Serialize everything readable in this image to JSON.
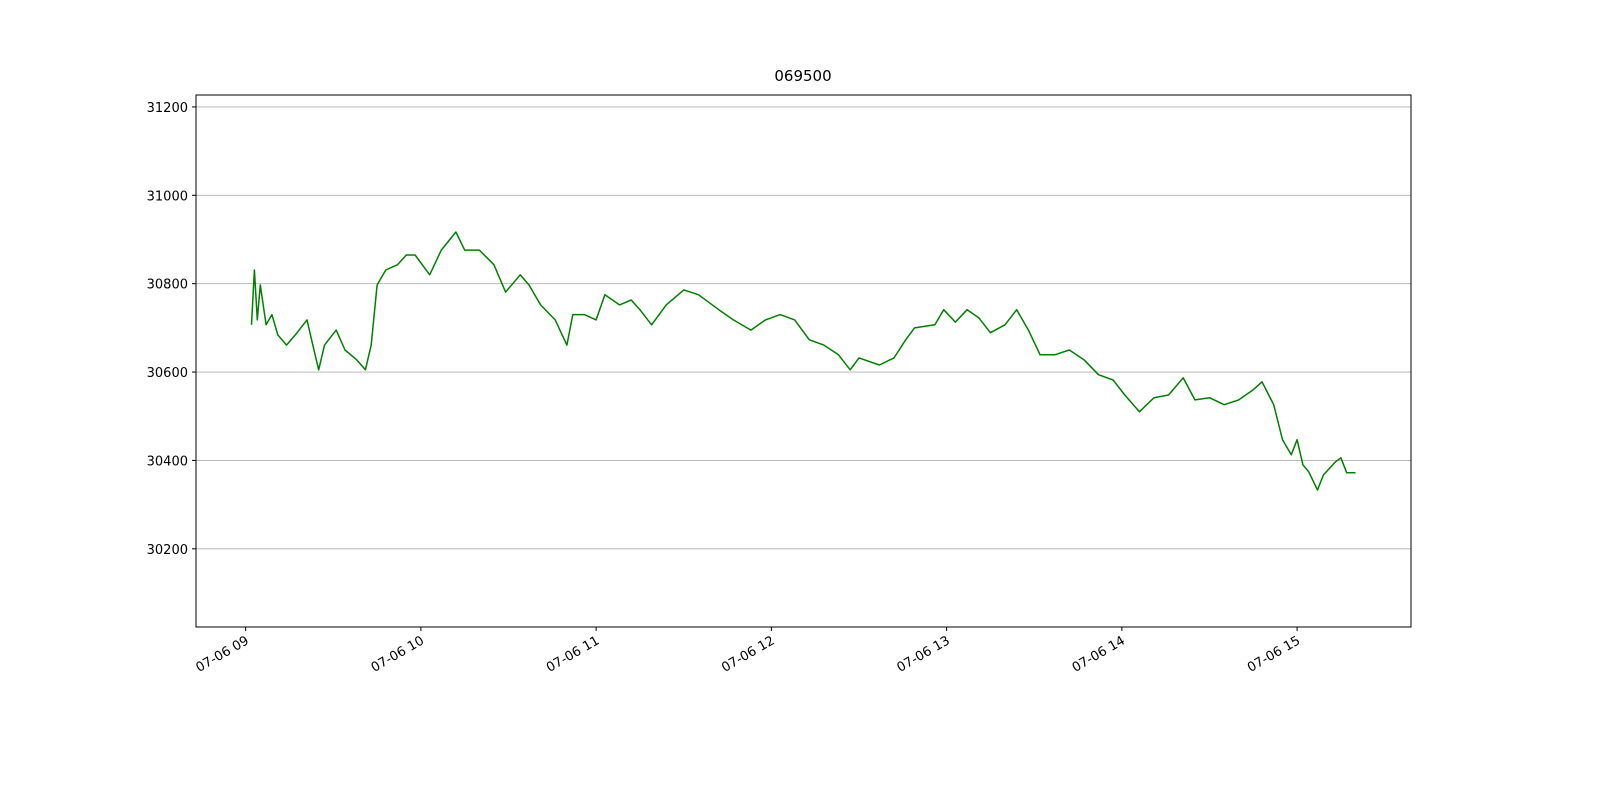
{
  "chart_data": {
    "type": "line",
    "title": "069500",
    "x": [
      "07-06 09:02",
      "07-06 09:03",
      "07-06 09:04",
      "07-06 09:05",
      "07-06 09:07",
      "07-06 09:09",
      "07-06 09:11",
      "07-06 09:14",
      "07-06 09:17",
      "07-06 09:21",
      "07-06 09:23",
      "07-06 09:25",
      "07-06 09:27",
      "07-06 09:31",
      "07-06 09:34",
      "07-06 09:38",
      "07-06 09:41",
      "07-06 09:43",
      "07-06 09:45",
      "07-06 09:48",
      "07-06 09:52",
      "07-06 09:55",
      "07-06 09:58",
      "07-06 10:03",
      "07-06 10:07",
      "07-06 10:12",
      "07-06 10:15",
      "07-06 10:20",
      "07-06 10:25",
      "07-06 10:29",
      "07-06 10:34",
      "07-06 10:37",
      "07-06 10:41",
      "07-06 10:46",
      "07-06 10:50",
      "07-06 10:52",
      "07-06 10:56",
      "07-06 11:00",
      "07-06 11:03",
      "07-06 11:08",
      "07-06 11:12",
      "07-06 11:15",
      "07-06 11:19",
      "07-06 11:24",
      "07-06 11:30",
      "07-06 11:35",
      "07-06 11:42",
      "07-06 11:47",
      "07-06 11:53",
      "07-06 11:58",
      "07-06 12:03",
      "07-06 12:08",
      "07-06 12:13",
      "07-06 12:18",
      "07-06 12:23",
      "07-06 12:27",
      "07-06 12:30",
      "07-06 12:37",
      "07-06 12:42",
      "07-06 12:46",
      "07-06 12:49",
      "07-06 12:56",
      "07-06 12:59",
      "07-06 13:03",
      "07-06 13:07",
      "07-06 13:11",
      "07-06 13:15",
      "07-06 13:20",
      "07-06 13:24",
      "07-06 13:28",
      "07-06 13:32",
      "07-06 13:37",
      "07-06 13:42",
      "07-06 13:47",
      "07-06 13:52",
      "07-06 13:57",
      "07-06 14:01",
      "07-06 14:06",
      "07-06 14:11",
      "07-06 14:16",
      "07-06 14:21",
      "07-06 14:25",
      "07-06 14:30",
      "07-06 14:35",
      "07-06 14:40",
      "07-06 14:45",
      "07-06 14:48",
      "07-06 14:52",
      "07-06 14:55",
      "07-06 14:58",
      "07-06 15:00",
      "07-06 15:02",
      "07-06 15:04",
      "07-06 15:07",
      "07-06 15:09",
      "07-06 15:13",
      "07-06 15:15",
      "07-06 15:17",
      "07-06 15:20"
    ],
    "series": [
      {
        "color": "#008000",
        "values": [
          30707,
          30831,
          30718,
          30797,
          30707,
          30730,
          30684,
          30661,
          30684,
          30718,
          30661,
          30605,
          30661,
          30695,
          30650,
          30628,
          30605,
          30661,
          30797,
          30831,
          30843,
          30865,
          30865,
          30820,
          30876,
          30917,
          30876,
          30876,
          30843,
          30781,
          30820,
          30797,
          30752,
          30718,
          30661,
          30730,
          30730,
          30718,
          30775,
          30752,
          30763,
          30741,
          30707,
          30752,
          30786,
          30775,
          30741,
          30718,
          30695,
          30718,
          30730,
          30718,
          30673,
          30661,
          30639,
          30605,
          30632,
          30616,
          30632,
          30673,
          30700,
          30707,
          30741,
          30713,
          30741,
          30723,
          30689,
          30707,
          30741,
          30695,
          30639,
          30639,
          30650,
          30628,
          30594,
          30582,
          30548,
          30510,
          30542,
          30548,
          30587,
          30537,
          30542,
          30526,
          30537,
          30560,
          30578,
          30526,
          30447,
          30413,
          30447,
          30390,
          30374,
          30333,
          30367,
          30396,
          30406,
          30372,
          30372
        ]
      }
    ],
    "xlim": [
      "07-06 08:43",
      "07-06 15:39"
    ],
    "xticks": [
      "07-06 09",
      "07-06 10",
      "07-06 11",
      "07-06 12",
      "07-06 13",
      "07-06 14",
      "07-06 15"
    ],
    "ylim": [
      30023,
      31227
    ],
    "yticks": [
      30200,
      30400,
      30600,
      30800,
      31000,
      31200
    ],
    "grid": "y"
  }
}
